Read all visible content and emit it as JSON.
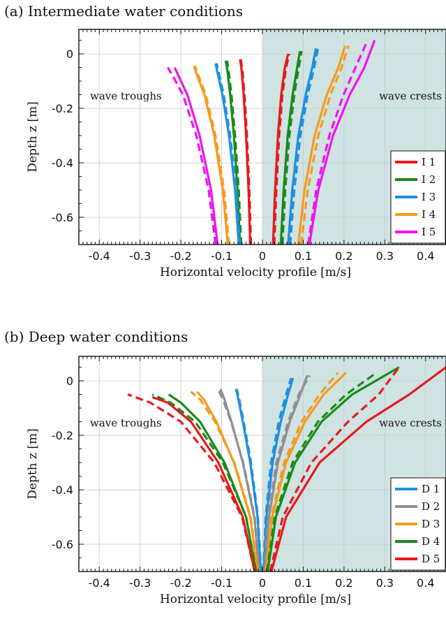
{
  "chart_data": [
    {
      "type": "line",
      "title": "(a) Intermediate water conditions",
      "xlabel": "Horizontal velocity profile [m/s]",
      "ylabel": "Depth z [m]",
      "xlim": [
        -0.45,
        0.45
      ],
      "ylim": [
        -0.7,
        0.09
      ],
      "xticks": [
        "-0.4",
        "-0.3",
        "-0.2",
        "-0.1",
        "0",
        "0.1",
        "0.2",
        "0.3",
        "0.4"
      ],
      "yticks": [
        "0",
        "-0.2",
        "-0.4",
        "-0.6"
      ],
      "grid": true,
      "shaded_region": {
        "from": 0,
        "to": 0.45,
        "color": "#cfe3e3"
      },
      "annotations": [
        "wave troughs",
        "wave crests"
      ],
      "legend": {
        "placement": "lower-right",
        "entries": [
          "I 1",
          "I 2",
          "I 3",
          "I 4",
          "I 5"
        ]
      },
      "note": "solid and dashed line pairs per series",
      "series": [
        {
          "name": "I 1",
          "color": "#e41a1c",
          "crest_solid": {
            "x": [
              0.026,
              0.031,
              0.038,
              0.046,
              0.055,
              0.063
            ],
            "z": [
              -0.7,
              -0.5,
              -0.3,
              -0.15,
              -0.05,
              0.0
            ]
          },
          "crest_dashed": {
            "x": [
              0.029,
              0.034,
              0.041,
              0.049,
              0.058,
              0.066
            ],
            "z": [
              -0.7,
              -0.5,
              -0.3,
              -0.15,
              -0.05,
              0.0
            ]
          },
          "trough_solid": {
            "x": [
              -0.03,
              -0.034,
              -0.04,
              -0.046,
              -0.051,
              -0.055
            ],
            "z": [
              -0.7,
              -0.5,
              -0.3,
              -0.15,
              -0.06,
              -0.02
            ]
          },
          "trough_dashed": {
            "x": [
              -0.028,
              -0.032,
              -0.038,
              -0.044,
              -0.049,
              -0.053
            ],
            "z": [
              -0.7,
              -0.5,
              -0.3,
              -0.15,
              -0.06,
              -0.02
            ]
          }
        },
        {
          "name": "I 2",
          "color": "#1a8a1a",
          "crest_solid": {
            "x": [
              0.045,
              0.052,
              0.062,
              0.074,
              0.085,
              0.092
            ],
            "z": [
              -0.7,
              -0.5,
              -0.3,
              -0.15,
              -0.05,
              0.01
            ]
          },
          "crest_dashed": {
            "x": [
              0.049,
              0.056,
              0.066,
              0.078,
              0.089,
              0.096
            ],
            "z": [
              -0.7,
              -0.5,
              -0.3,
              -0.15,
              -0.05,
              0.01
            ]
          },
          "trough_solid": {
            "x": [
              -0.055,
              -0.061,
              -0.07,
              -0.079,
              -0.086,
              -0.09
            ],
            "z": [
              -0.7,
              -0.5,
              -0.3,
              -0.15,
              -0.06,
              -0.025
            ]
          },
          "trough_dashed": {
            "x": [
              -0.052,
              -0.058,
              -0.067,
              -0.076,
              -0.083,
              -0.087
            ],
            "z": [
              -0.7,
              -0.5,
              -0.3,
              -0.15,
              -0.06,
              -0.025
            ]
          }
        },
        {
          "name": "I 3",
          "color": "#1f8fe0",
          "crest_solid": {
            "x": [
              0.063,
              0.073,
              0.088,
              0.106,
              0.122,
              0.131
            ],
            "z": [
              -0.7,
              -0.5,
              -0.3,
              -0.15,
              -0.05,
              0.02
            ]
          },
          "crest_dashed": {
            "x": [
              0.068,
              0.078,
              0.093,
              0.111,
              0.127,
              0.136
            ],
            "z": [
              -0.7,
              -0.5,
              -0.3,
              -0.15,
              -0.05,
              0.02
            ]
          },
          "trough_solid": {
            "x": [
              -0.058,
              -0.067,
              -0.082,
              -0.098,
              -0.11,
              -0.115
            ],
            "z": [
              -0.7,
              -0.5,
              -0.3,
              -0.15,
              -0.07,
              -0.035
            ]
          },
          "trough_dashed": {
            "x": [
              -0.055,
              -0.064,
              -0.079,
              -0.095,
              -0.107,
              -0.112
            ],
            "z": [
              -0.7,
              -0.5,
              -0.3,
              -0.15,
              -0.07,
              -0.035
            ]
          }
        },
        {
          "name": "I 4",
          "color": "#f59a1a",
          "crest_solid": {
            "x": [
              0.088,
              0.103,
              0.128,
              0.158,
              0.186,
              0.203
            ],
            "z": [
              -0.7,
              -0.5,
              -0.3,
              -0.15,
              -0.05,
              0.03
            ]
          },
          "crest_dashed": {
            "x": [
              0.095,
              0.111,
              0.137,
              0.167,
              0.194,
              0.211
            ],
            "z": [
              -0.7,
              -0.5,
              -0.3,
              -0.15,
              -0.05,
              0.03
            ]
          },
          "trough_solid": {
            "x": [
              -0.085,
              -0.097,
              -0.118,
              -0.142,
              -0.16,
              -0.168
            ],
            "z": [
              -0.7,
              -0.5,
              -0.3,
              -0.15,
              -0.08,
              -0.045
            ]
          },
          "trough_dashed": {
            "x": [
              -0.082,
              -0.094,
              -0.115,
              -0.139,
              -0.157,
              -0.165
            ],
            "z": [
              -0.7,
              -0.5,
              -0.3,
              -0.15,
              -0.08,
              -0.045
            ]
          }
        },
        {
          "name": "I 5",
          "color": "#ee14ee",
          "crest_solid": {
            "x": [
              0.115,
              0.137,
              0.173,
              0.214,
              0.25,
              0.275
            ],
            "z": [
              -0.7,
              -0.5,
              -0.3,
              -0.15,
              -0.05,
              0.05
            ]
          },
          "crest_dashed": {
            "x": [
              0.112,
              0.132,
              0.164,
              0.199,
              0.228,
              0.258
            ],
            "z": [
              -0.7,
              -0.5,
              -0.3,
              -0.15,
              -0.05,
              0.05
            ]
          },
          "trough_solid": {
            "x": [
              -0.11,
              -0.126,
              -0.154,
              -0.184,
              -0.206,
              -0.215
            ],
            "z": [
              -0.7,
              -0.5,
              -0.3,
              -0.15,
              -0.08,
              -0.05
            ]
          },
          "trough_dashed": {
            "x": [
              -0.115,
              -0.132,
              -0.162,
              -0.195,
              -0.22,
              -0.232
            ],
            "z": [
              -0.7,
              -0.5,
              -0.3,
              -0.15,
              -0.08,
              -0.05
            ]
          }
        }
      ]
    },
    {
      "type": "line",
      "title": "(b) Deep water conditions",
      "xlabel": "Horizontal velocity profile [m/s]",
      "ylabel": "Depth z [m]",
      "xlim": [
        -0.45,
        0.45
      ],
      "ylim": [
        -0.7,
        0.09
      ],
      "xticks": [
        "-0.4",
        "-0.3",
        "-0.2",
        "-0.1",
        "0",
        "0.1",
        "0.2",
        "0.3",
        "0.4"
      ],
      "yticks": [
        "0",
        "-0.2",
        "-0.4",
        "-0.6"
      ],
      "grid": true,
      "shaded_region": {
        "from": 0,
        "to": 0.45,
        "color": "#cfe3e3"
      },
      "annotations": [
        "wave troughs",
        "wave crests"
      ],
      "legend": {
        "placement": "lower-right",
        "entries": [
          "D 1",
          "D 2",
          "D 3",
          "D 4",
          "D 5"
        ]
      },
      "note": "solid and dashed line pairs per series",
      "series": [
        {
          "name": "D 1",
          "color": "#1f8fe0",
          "crest_solid": {
            "x": [
              0.003,
              0.01,
              0.025,
              0.045,
              0.063,
              0.075
            ],
            "z": [
              -0.7,
              -0.5,
              -0.3,
              -0.15,
              -0.05,
              0.01
            ]
          },
          "crest_dashed": {
            "x": [
              0.002,
              0.008,
              0.021,
              0.04,
              0.058,
              0.07
            ],
            "z": [
              -0.7,
              -0.5,
              -0.3,
              -0.15,
              -0.05,
              0.01
            ]
          },
          "trough_solid": {
            "x": [
              -0.004,
              -0.012,
              -0.03,
              -0.048,
              -0.06,
              -0.065
            ],
            "z": [
              -0.7,
              -0.5,
              -0.3,
              -0.15,
              -0.06,
              -0.03
            ]
          },
          "trough_dashed": {
            "x": [
              -0.003,
              -0.011,
              -0.028,
              -0.046,
              -0.058,
              -0.063
            ],
            "z": [
              -0.7,
              -0.5,
              -0.3,
              -0.15,
              -0.06,
              -0.03
            ]
          }
        },
        {
          "name": "D 2",
          "color": "#8f8f8f",
          "crest_solid": {
            "x": [
              0.006,
              0.016,
              0.038,
              0.067,
              0.093,
              0.11
            ],
            "z": [
              -0.7,
              -0.5,
              -0.3,
              -0.15,
              -0.05,
              0.02
            ]
          },
          "crest_dashed": {
            "x": [
              0.004,
              0.014,
              0.034,
              0.063,
              0.089,
              0.116
            ],
            "z": [
              -0.7,
              -0.5,
              -0.3,
              -0.15,
              -0.05,
              0.02
            ]
          },
          "trough_solid": {
            "x": [
              -0.008,
              -0.02,
              -0.048,
              -0.076,
              -0.095,
              -0.103
            ],
            "z": [
              -0.7,
              -0.5,
              -0.3,
              -0.15,
              -0.06,
              -0.03
            ]
          },
          "trough_dashed": {
            "x": [
              -0.007,
              -0.019,
              -0.047,
              -0.077,
              -0.099,
              -0.11
            ],
            "z": [
              -0.7,
              -0.5,
              -0.3,
              -0.15,
              -0.06,
              -0.03
            ]
          }
        },
        {
          "name": "D 3",
          "color": "#f59a1a",
          "crest_solid": {
            "x": [
              0.009,
              0.024,
              0.058,
              0.104,
              0.15,
              0.205
            ],
            "z": [
              -0.7,
              -0.5,
              -0.3,
              -0.15,
              -0.05,
              0.03
            ]
          },
          "crest_dashed": {
            "x": [
              0.008,
              0.022,
              0.053,
              0.096,
              0.14,
              0.185
            ],
            "z": [
              -0.7,
              -0.5,
              -0.3,
              -0.15,
              -0.05,
              0.03
            ]
          },
          "trough_solid": {
            "x": [
              -0.012,
              -0.03,
              -0.07,
              -0.113,
              -0.143,
              -0.16
            ],
            "z": [
              -0.7,
              -0.5,
              -0.3,
              -0.15,
              -0.07,
              -0.04
            ]
          },
          "trough_dashed": {
            "x": [
              -0.011,
              -0.029,
              -0.069,
              -0.116,
              -0.152,
              -0.175
            ],
            "z": [
              -0.7,
              -0.5,
              -0.3,
              -0.15,
              -0.07,
              -0.04
            ]
          }
        },
        {
          "name": "D 4",
          "color": "#1a8a1a",
          "crest_solid": {
            "x": [
              0.013,
              0.033,
              0.08,
              0.145,
              0.22,
              0.335
            ],
            "z": [
              -0.7,
              -0.5,
              -0.3,
              -0.15,
              -0.05,
              0.05
            ]
          },
          "crest_dashed": {
            "x": [
              0.011,
              0.03,
              0.074,
              0.136,
              0.205,
              0.28
            ],
            "z": [
              -0.7,
              -0.5,
              -0.3,
              -0.15,
              -0.05,
              0.03
            ]
          },
          "trough_solid": {
            "x": [
              -0.016,
              -0.04,
              -0.093,
              -0.153,
              -0.2,
              -0.23
            ],
            "z": [
              -0.7,
              -0.5,
              -0.3,
              -0.15,
              -0.08,
              -0.05
            ]
          },
          "trough_dashed": {
            "x": [
              -0.015,
              -0.04,
              -0.097,
              -0.165,
              -0.225,
              -0.27
            ],
            "z": [
              -0.7,
              -0.5,
              -0.3,
              -0.15,
              -0.08,
              -0.05
            ]
          }
        },
        {
          "name": "D 5",
          "color": "#e41a1c",
          "crest_solid": {
            "x": [
              0.022,
              0.058,
              0.14,
              0.255,
              0.36,
              0.45
            ],
            "z": [
              -0.7,
              -0.5,
              -0.3,
              -0.15,
              -0.05,
              0.05
            ]
          },
          "crest_dashed": {
            "x": [
              0.019,
              0.05,
              0.12,
              0.21,
              0.285,
              0.335
            ],
            "z": [
              -0.7,
              -0.5,
              -0.3,
              -0.15,
              -0.05,
              0.05
            ]
          },
          "trough_solid": {
            "x": [
              -0.019,
              -0.048,
              -0.108,
              -0.175,
              -0.232,
              -0.27
            ],
            "z": [
              -0.7,
              -0.5,
              -0.3,
              -0.15,
              -0.08,
              -0.06
            ]
          },
          "trough_dashed": {
            "x": [
              -0.019,
              -0.05,
              -0.118,
              -0.2,
              -0.275,
              -0.33
            ],
            "z": [
              -0.7,
              -0.5,
              -0.3,
              -0.15,
              -0.08,
              -0.05
            ]
          }
        }
      ]
    }
  ]
}
